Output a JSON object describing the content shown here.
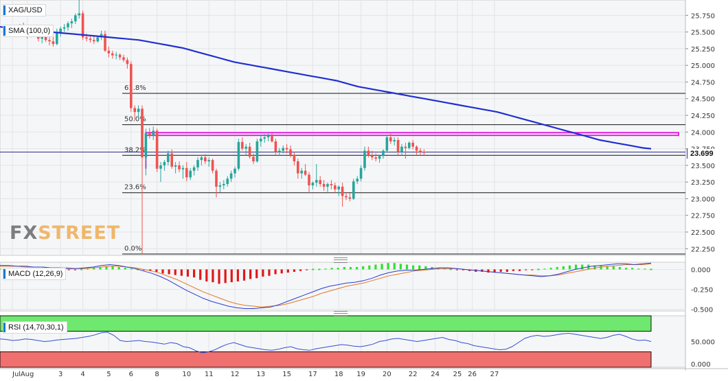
{
  "chart_data": [
    {
      "type": "candlestick",
      "symbol": "XAG/USD",
      "indicator": "SMA (100,0)",
      "last_price": "23.699",
      "ylim": [
        22.15,
        25.98
      ],
      "y_ticks": [
        "25.750",
        "25.500",
        "25.250",
        "25.000",
        "24.750",
        "24.500",
        "24.250",
        "24.000",
        "23.750",
        "23.500",
        "23.250",
        "23.000",
        "22.750",
        "22.500",
        "22.250"
      ],
      "x_ticks": [
        "Jul",
        "Aug",
        "3",
        "4",
        "5",
        "6",
        "8",
        "10",
        "11",
        "12",
        "13",
        "15",
        "17",
        "18",
        "19",
        "20",
        "22",
        "24",
        "25",
        "26",
        "27"
      ],
      "fib_levels": [
        {
          "label": "61.8%",
          "value": 24.58
        },
        {
          "label": "50.0%",
          "value": 24.11
        },
        {
          "label": "38.2%",
          "value": 23.65
        },
        {
          "label": "23.6%",
          "value": 23.09
        },
        {
          "label": "0.0%",
          "value": 22.17
        }
      ],
      "resistance_zone": [
        23.95,
        23.99
      ],
      "candles": [
        [
          25.55,
          25.6,
          25.45,
          25.5
        ],
        [
          25.5,
          25.58,
          25.44,
          25.52
        ],
        [
          25.52,
          25.62,
          25.48,
          25.58
        ],
        [
          25.58,
          25.64,
          25.47,
          25.49
        ],
        [
          25.49,
          25.55,
          25.4,
          25.46
        ],
        [
          25.46,
          25.57,
          25.42,
          25.54
        ],
        [
          25.54,
          25.6,
          25.45,
          25.47
        ],
        [
          25.47,
          25.52,
          25.36,
          25.4
        ],
        [
          25.4,
          25.47,
          25.33,
          25.44
        ],
        [
          25.44,
          25.5,
          25.35,
          25.38
        ],
        [
          25.38,
          25.45,
          25.3,
          25.36
        ],
        [
          25.36,
          25.43,
          25.28,
          25.32
        ],
        [
          25.32,
          25.55,
          25.3,
          25.48
        ],
        [
          25.48,
          25.58,
          25.43,
          25.55
        ],
        [
          25.55,
          25.62,
          25.5,
          25.57
        ],
        [
          25.57,
          25.66,
          25.52,
          25.63
        ],
        [
          25.63,
          25.7,
          25.56,
          25.66
        ],
        [
          25.66,
          25.78,
          25.62,
          25.75
        ],
        [
          25.75,
          25.98,
          25.7,
          25.78
        ],
        [
          25.78,
          25.82,
          25.38,
          25.42
        ],
        [
          25.42,
          25.48,
          25.36,
          25.4
        ],
        [
          25.4,
          25.46,
          25.34,
          25.38
        ],
        [
          25.38,
          25.44,
          25.32,
          25.36
        ],
        [
          25.36,
          25.45,
          25.34,
          25.42
        ],
        [
          25.42,
          25.52,
          25.38,
          25.47
        ],
        [
          25.47,
          25.52,
          25.2,
          25.22
        ],
        [
          25.22,
          25.28,
          25.12,
          25.18
        ],
        [
          25.18,
          25.22,
          25.1,
          25.15
        ],
        [
          25.15,
          25.2,
          25.09,
          25.16
        ],
        [
          25.16,
          25.18,
          25.08,
          25.12
        ],
        [
          25.12,
          25.16,
          25.05,
          25.08
        ],
        [
          25.08,
          25.12,
          24.95,
          25.02
        ],
        [
          25.02,
          25.06,
          24.3,
          24.36
        ],
        [
          24.36,
          24.4,
          24.18,
          24.3
        ],
        [
          24.3,
          24.4,
          24.22,
          24.35
        ],
        [
          24.35,
          24.4,
          22.17,
          23.62
        ],
        [
          23.62,
          24.05,
          23.35,
          23.98
        ],
        [
          23.98,
          24.06,
          23.9,
          23.95
        ],
        [
          23.95,
          24.08,
          23.88,
          24.02
        ],
        [
          24.02,
          24.05,
          23.4,
          23.45
        ],
        [
          23.45,
          23.55,
          23.25,
          23.5
        ],
        [
          23.5,
          23.58,
          23.42,
          23.55
        ],
        [
          23.55,
          23.72,
          23.5,
          23.68
        ],
        [
          23.68,
          23.74,
          23.45,
          23.48
        ],
        [
          23.48,
          23.55,
          23.38,
          23.5
        ],
        [
          23.5,
          23.56,
          23.4,
          23.44
        ],
        [
          23.44,
          23.5,
          23.3,
          23.46
        ],
        [
          23.46,
          23.55,
          23.26,
          23.32
        ],
        [
          23.32,
          23.46,
          23.28,
          23.42
        ],
        [
          23.42,
          23.5,
          23.35,
          23.47
        ],
        [
          23.47,
          23.62,
          23.42,
          23.58
        ],
        [
          23.58,
          23.66,
          23.5,
          23.62
        ],
        [
          23.62,
          23.67,
          23.52,
          23.56
        ],
        [
          23.56,
          23.62,
          23.48,
          23.58
        ],
        [
          23.58,
          23.6,
          23.38,
          23.42
        ],
        [
          23.42,
          23.45,
          23.02,
          23.18
        ],
        [
          23.18,
          23.25,
          23.1,
          23.2
        ],
        [
          23.2,
          23.28,
          23.14,
          23.22
        ],
        [
          23.22,
          23.34,
          23.18,
          23.3
        ],
        [
          23.3,
          23.42,
          23.25,
          23.38
        ],
        [
          23.38,
          23.48,
          23.32,
          23.45
        ],
        [
          23.45,
          23.9,
          23.42,
          23.85
        ],
        [
          23.85,
          23.92,
          23.72,
          23.75
        ],
        [
          23.75,
          23.82,
          23.66,
          23.78
        ],
        [
          23.78,
          23.84,
          23.6,
          23.63
        ],
        [
          23.63,
          23.68,
          23.52,
          23.56
        ],
        [
          23.56,
          23.9,
          23.54,
          23.86
        ],
        [
          23.86,
          23.94,
          23.78,
          23.9
        ],
        [
          23.9,
          23.97,
          23.84,
          23.92
        ],
        [
          23.92,
          23.98,
          23.86,
          23.94
        ],
        [
          23.94,
          23.98,
          23.84,
          23.86
        ],
        [
          23.86,
          23.9,
          23.66,
          23.7
        ],
        [
          23.7,
          23.76,
          23.64,
          23.72
        ],
        [
          23.72,
          23.8,
          23.68,
          23.76
        ],
        [
          23.76,
          23.82,
          23.68,
          23.74
        ],
        [
          23.74,
          23.8,
          23.62,
          23.66
        ],
        [
          23.66,
          23.7,
          23.5,
          23.56
        ],
        [
          23.56,
          23.6,
          23.3,
          23.38
        ],
        [
          23.38,
          23.46,
          23.3,
          23.42
        ],
        [
          23.42,
          23.52,
          23.34,
          23.36
        ],
        [
          23.36,
          23.4,
          23.08,
          23.2
        ],
        [
          23.2,
          23.26,
          23.14,
          23.24
        ],
        [
          23.24,
          23.52,
          23.18,
          23.28
        ],
        [
          23.28,
          23.34,
          23.18,
          23.22
        ],
        [
          23.22,
          23.28,
          23.12,
          23.18
        ],
        [
          23.18,
          23.24,
          23.1,
          23.22
        ],
        [
          23.22,
          23.28,
          23.14,
          23.2
        ],
        [
          23.2,
          23.24,
          23.08,
          23.14
        ],
        [
          23.14,
          23.2,
          23.04,
          23.18
        ],
        [
          23.18,
          23.24,
          22.88,
          23.04
        ],
        [
          23.04,
          23.1,
          22.98,
          23.02
        ],
        [
          23.02,
          23.08,
          22.96,
          23.0
        ],
        [
          23.0,
          23.3,
          22.98,
          23.26
        ],
        [
          23.26,
          23.34,
          23.22,
          23.3
        ],
        [
          23.3,
          23.5,
          23.26,
          23.46
        ],
        [
          23.46,
          23.78,
          23.42,
          23.72
        ],
        [
          23.72,
          23.78,
          23.62,
          23.65
        ],
        [
          23.65,
          23.72,
          23.58,
          23.62
        ],
        [
          23.62,
          23.68,
          23.56,
          23.6
        ],
        [
          23.6,
          23.66,
          23.54,
          23.64
        ],
        [
          23.64,
          23.74,
          23.6,
          23.72
        ],
        [
          23.72,
          23.96,
          23.7,
          23.92
        ],
        [
          23.92,
          23.98,
          23.82,
          23.86
        ],
        [
          23.86,
          23.92,
          23.8,
          23.88
        ],
        [
          23.88,
          23.92,
          23.66,
          23.7
        ],
        [
          23.7,
          23.82,
          23.66,
          23.78
        ],
        [
          23.78,
          23.84,
          23.6,
          23.76
        ],
        [
          23.76,
          23.86,
          23.74,
          23.84
        ],
        [
          23.84,
          23.88,
          23.74,
          23.78
        ],
        [
          23.78,
          23.8,
          23.66,
          23.72
        ],
        [
          23.72,
          23.76,
          23.64,
          23.7
        ],
        [
          23.7,
          23.74,
          23.64,
          23.69
        ]
      ],
      "sma": [
        25.58,
        25.56,
        25.55,
        25.54,
        25.53,
        25.52,
        25.51,
        25.5,
        25.49,
        25.48,
        25.47,
        25.46,
        25.45,
        25.44,
        25.43,
        25.42,
        25.41,
        25.4,
        25.39,
        25.38,
        25.36,
        25.34,
        25.32,
        25.3,
        25.28,
        25.26,
        25.23,
        25.2,
        25.17,
        25.14,
        25.11,
        25.08,
        25.05,
        25.03,
        25.01,
        24.99,
        24.97,
        24.95,
        24.93,
        24.91,
        24.89,
        24.87,
        24.85,
        24.83,
        24.81,
        24.79,
        24.77,
        24.74,
        24.71,
        24.68,
        24.66,
        24.64,
        24.62,
        24.6,
        24.58,
        24.56,
        24.54,
        24.52,
        24.5,
        24.48,
        24.46,
        24.44,
        24.42,
        24.4,
        24.38,
        24.36,
        24.34,
        24.32,
        24.3,
        24.27,
        24.24,
        24.21,
        24.18,
        24.15,
        24.12,
        24.09,
        24.06,
        24.03,
        24.0,
        23.97,
        23.94,
        23.91,
        23.88,
        23.86,
        23.84,
        23.82,
        23.8,
        23.78,
        23.76,
        23.75
      ],
      "x_tick_candle_index": [
        0,
        4,
        13,
        19,
        26,
        32,
        39,
        47,
        53,
        60,
        67,
        74,
        81,
        88,
        94,
        101,
        108,
        114,
        120,
        124,
        130
      ]
    },
    {
      "type": "histogram+line",
      "name": "MACD (12,26,9)",
      "ylim": [
        -0.52,
        0.09
      ],
      "y_ticks": [
        "0.000",
        "-0.250",
        "-0.500"
      ],
      "histogram": [
        0.01,
        0.02,
        0.02,
        0.02,
        0.01,
        0.01,
        0.0,
        0.0,
        -0.01,
        -0.02,
        -0.02,
        -0.01,
        -0.01,
        0.0,
        0.01,
        0.02,
        0.03,
        0.04,
        0.04,
        0.03,
        0.02,
        0.01,
        0.0,
        -0.01,
        -0.02,
        -0.03,
        -0.05,
        -0.06,
        -0.07,
        -0.08,
        -0.09,
        -0.1,
        -0.13,
        -0.15,
        -0.16,
        -0.18,
        -0.17,
        -0.16,
        -0.15,
        -0.14,
        -0.12,
        -0.11,
        -0.09,
        -0.08,
        -0.06,
        -0.05,
        -0.04,
        -0.03,
        -0.02,
        -0.01,
        0.0,
        0.0,
        0.01,
        0.02,
        0.02,
        0.03,
        0.03,
        0.03,
        0.04,
        0.05,
        0.06,
        0.07,
        0.08,
        0.08,
        0.07,
        0.06,
        0.05,
        0.05,
        0.04,
        0.03,
        0.02,
        0.01,
        0.0,
        -0.01,
        -0.01,
        -0.02,
        -0.03,
        -0.03,
        -0.04,
        -0.04,
        -0.03,
        -0.03,
        -0.02,
        -0.02,
        -0.01,
        -0.01,
        0.0,
        0.01,
        0.02,
        0.03,
        0.04,
        0.05,
        0.06,
        0.06,
        0.06,
        0.05,
        0.05,
        0.04,
        0.04,
        0.03,
        0.02,
        0.02,
        0.01,
        0.01,
        0.0
      ],
      "macd": [
        0.05,
        0.05,
        0.04,
        0.04,
        0.03,
        0.03,
        0.02,
        0.02,
        0.01,
        0.01,
        0.02,
        0.03,
        0.05,
        0.06,
        0.05,
        0.03,
        0.01,
        -0.02,
        -0.05,
        -0.09,
        -0.14,
        -0.2,
        -0.26,
        -0.31,
        -0.36,
        -0.4,
        -0.43,
        -0.46,
        -0.48,
        -0.49,
        -0.49,
        -0.48,
        -0.47,
        -0.44,
        -0.4,
        -0.36,
        -0.32,
        -0.28,
        -0.24,
        -0.21,
        -0.19,
        -0.17,
        -0.16,
        -0.14,
        -0.11,
        -0.07,
        -0.04,
        -0.02,
        -0.01,
        -0.01,
        0.0,
        0.01,
        0.02,
        0.02,
        0.01,
        0.0,
        -0.01,
        -0.02,
        -0.03,
        -0.04,
        -0.05,
        -0.06,
        -0.07,
        -0.08,
        -0.09,
        -0.08,
        -0.06,
        -0.03,
        0.0,
        0.02,
        0.04,
        0.05,
        0.06,
        0.07,
        0.07,
        0.06,
        0.07,
        0.08
      ],
      "signal": [
        0.04,
        0.04,
        0.04,
        0.03,
        0.03,
        0.03,
        0.02,
        0.02,
        0.02,
        0.01,
        0.01,
        0.02,
        0.03,
        0.04,
        0.04,
        0.03,
        0.02,
        0.0,
        -0.02,
        -0.05,
        -0.09,
        -0.13,
        -0.18,
        -0.23,
        -0.28,
        -0.32,
        -0.36,
        -0.4,
        -0.43,
        -0.45,
        -0.46,
        -0.47,
        -0.46,
        -0.45,
        -0.43,
        -0.4,
        -0.37,
        -0.34,
        -0.3,
        -0.27,
        -0.24,
        -0.21,
        -0.19,
        -0.17,
        -0.14,
        -0.11,
        -0.08,
        -0.06,
        -0.04,
        -0.02,
        -0.01,
        0.0,
        0.01,
        0.01,
        0.01,
        0.0,
        -0.01,
        -0.02,
        -0.03,
        -0.04,
        -0.05,
        -0.06,
        -0.07,
        -0.07,
        -0.08,
        -0.08,
        -0.07,
        -0.05,
        -0.03,
        -0.01,
        0.01,
        0.03,
        0.04,
        0.05,
        0.06,
        0.06,
        0.06,
        0.07
      ]
    },
    {
      "type": "line",
      "name": "RSI (14,70,30,1)",
      "ylim": [
        0,
        100
      ],
      "y_ticks": [
        "50.000",
        "0.000"
      ],
      "overbought": 70,
      "oversold": 30,
      "values": [
        55,
        54,
        52,
        53,
        55,
        54,
        52,
        50,
        51,
        53,
        54,
        55,
        56,
        58,
        60,
        63,
        67,
        68,
        62,
        52,
        50,
        51,
        52,
        50,
        49,
        47,
        45,
        48,
        46,
        40,
        38,
        32,
        28,
        30,
        34,
        40,
        45,
        48,
        44,
        40,
        38,
        36,
        34,
        33,
        35,
        38,
        40,
        36,
        34,
        33,
        36,
        38,
        40,
        42,
        44,
        43,
        41,
        40,
        42,
        45,
        50,
        52,
        55,
        56,
        54,
        52,
        50,
        52,
        54,
        56,
        58,
        54,
        52,
        48,
        46,
        42,
        40,
        38,
        36,
        34,
        35,
        40,
        48,
        56,
        60,
        62,
        60,
        61,
        63,
        65,
        66,
        64,
        62,
        60,
        58,
        56,
        58,
        62,
        64,
        60,
        55,
        52,
        53,
        50
      ]
    }
  ],
  "labels": {
    "symbol": "XAG/USD",
    "sma": "SMA (100,0)",
    "macd": "MACD (12,26,9)",
    "rsi": "RSI (14,70,30,1)",
    "price_tag": "23.699",
    "watermark_a": "FX",
    "watermark_b": "STREET"
  },
  "colors": {
    "up": "#26a69a",
    "down": "#ef5350",
    "sma": "#1f2fd0",
    "resistance": "#e020e0",
    "macd_pos": "#2fe02f",
    "macd_neg": "#e01818",
    "macd_line": "#2a3cd0",
    "signal_line": "#e07820",
    "rsi_line": "#3050d0",
    "rsi_upper": "#6ee86e",
    "rsi_lower": "#f07070"
  }
}
